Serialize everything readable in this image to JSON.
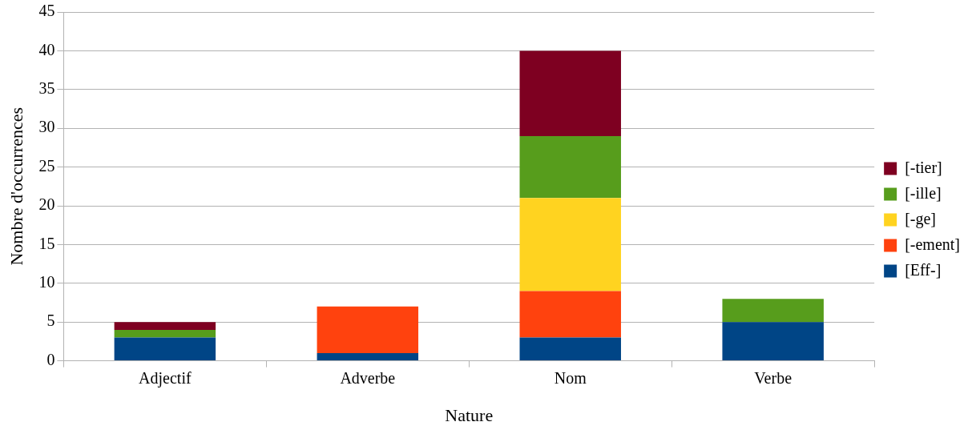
{
  "chart_data": {
    "type": "bar",
    "stacked": true,
    "xlabel": "Nature",
    "ylabel": "Nombre d'occurrences",
    "categories": [
      "Adjectif",
      "Adverbe",
      "Nom",
      "Verbe"
    ],
    "series": [
      {
        "name": "[Eff-]",
        "color": "#004586",
        "values": [
          3,
          1,
          3,
          5
        ]
      },
      {
        "name": "[-ement]",
        "color": "#ff420e",
        "values": [
          0,
          6,
          6,
          0
        ]
      },
      {
        "name": "[-ge]",
        "color": "#ffd320",
        "values": [
          0,
          0,
          12,
          0
        ]
      },
      {
        "name": "[-ille]",
        "color": "#579d1c",
        "values": [
          1,
          0,
          8,
          3
        ]
      },
      {
        "name": "[-tier]",
        "color": "#7e0021",
        "values": [
          1,
          0,
          11,
          0
        ]
      }
    ],
    "ylim": [
      0,
      45
    ],
    "yticks": [
      0,
      5,
      10,
      15,
      20,
      25,
      30,
      35,
      40,
      45
    ],
    "grid": "y",
    "legend": "right"
  }
}
